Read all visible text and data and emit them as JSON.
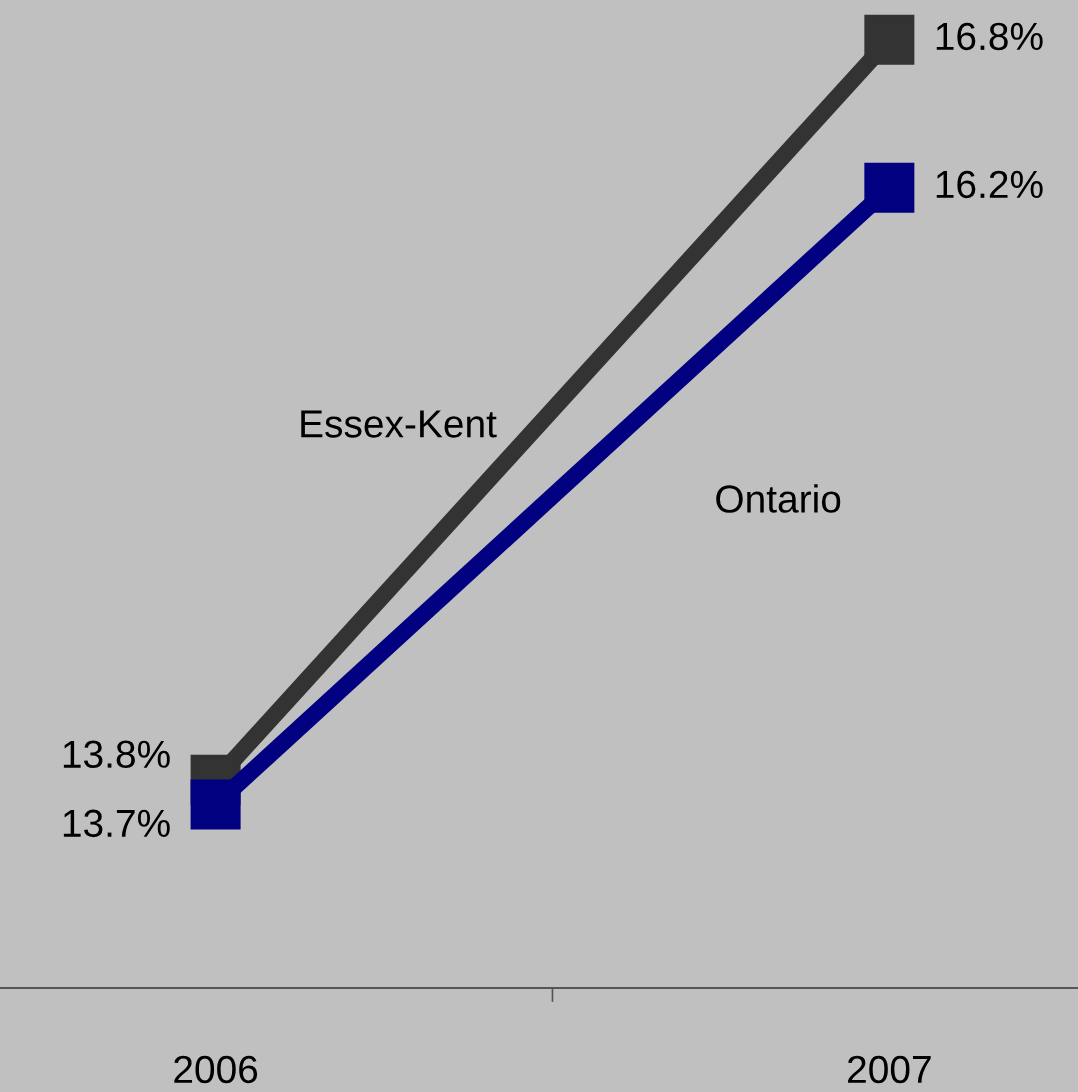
{
  "chart_data": {
    "type": "line",
    "categories": [
      "2006",
      "2007"
    ],
    "series": [
      {
        "name": "Essex-Kent",
        "color": "#333333",
        "values": [
          13.8,
          16.8
        ],
        "value_labels": [
          "13.8%",
          "16.8%"
        ]
      },
      {
        "name": "Ontario",
        "color": "#000080",
        "values": [
          13.7,
          16.2
        ],
        "value_labels": [
          "13.7%",
          "16.2%"
        ]
      }
    ],
    "marker": "square",
    "line_style": "solid",
    "grid": false,
    "legend": false,
    "relative": false
  }
}
